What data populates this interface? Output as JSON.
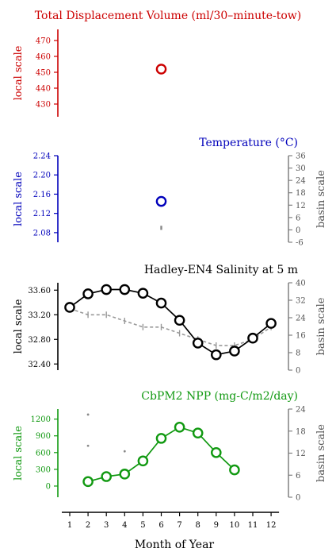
{
  "chart_data": [
    {
      "type": "scatter",
      "title": "Total Displacement Volume (ml/30–minute-tow)",
      "ylabel_left": "local scale",
      "ylim": [
        422,
        477
      ],
      "yticks": [
        430,
        440,
        450,
        460,
        470
      ],
      "color": "#cc0000",
      "series": [
        {
          "x": [
            6
          ],
          "values": [
            452
          ]
        }
      ]
    },
    {
      "type": "scatter",
      "title": "Temperature (°C)",
      "ylabel_left": "local scale",
      "ylabel_right": "basin scale",
      "ylim": [
        2.06,
        2.24
      ],
      "yticks": [
        2.08,
        2.12,
        2.16,
        2.2,
        2.24
      ],
      "right_ylim": [
        -6,
        36
      ],
      "right_yticks": [
        -6,
        0,
        6,
        12,
        18,
        24,
        30,
        36
      ],
      "color": "#0000bb",
      "series": [
        {
          "x": [
            6
          ],
          "values": [
            2.145
          ]
        }
      ],
      "basin_bars": [
        {
          "x": 6,
          "low": 0,
          "high": 2
        }
      ]
    },
    {
      "type": "line",
      "title": "Hadley-EN4 Salinity at 5 m",
      "ylabel_left": "local scale",
      "ylabel_right": "basin scale",
      "ylim": [
        32.3,
        33.72
      ],
      "yticks": [
        32.4,
        32.8,
        33.2,
        33.6
      ],
      "right_ylim": [
        0,
        40
      ],
      "right_yticks": [
        0,
        8,
        16,
        24,
        32,
        40
      ],
      "color": "#000000",
      "series": [
        {
          "x": [
            1,
            2,
            3,
            4,
            5,
            6,
            7,
            8,
            9,
            10,
            11,
            12
          ],
          "values": [
            33.32,
            33.54,
            33.61,
            33.61,
            33.55,
            33.39,
            33.11,
            32.74,
            32.55,
            32.61,
            32.82,
            33.06
          ]
        }
      ],
      "basin_series": [
        {
          "x": [
            1,
            2,
            3,
            4,
            5,
            6,
            7,
            8,
            9,
            10,
            11,
            12
          ],
          "values": [
            33.3,
            33.2,
            33.2,
            33.1,
            33.0,
            33.0,
            32.9,
            32.8,
            32.7,
            32.7,
            32.8,
            33.0
          ]
        }
      ]
    },
    {
      "type": "line",
      "title": "CbPM2 NPP (mg-C/m2/day)",
      "ylabel_left": "local scale",
      "ylabel_right": "basin scale",
      "ylim": [
        -200,
        1380
      ],
      "yticks": [
        0,
        300,
        600,
        900,
        1200
      ],
      "right_ylim": [
        0,
        24
      ],
      "right_yticks": [
        0,
        6,
        12,
        18,
        24
      ],
      "color": "#119911",
      "series": [
        {
          "x": [
            2,
            3,
            4,
            5,
            6,
            7,
            8,
            9,
            10
          ],
          "values": [
            80,
            170,
            215,
            450,
            855,
            1055,
            950,
            600,
            290
          ]
        }
      ],
      "basin_points": [
        {
          "x": 2,
          "value": 22.5
        },
        {
          "x": 2,
          "value": 14
        },
        {
          "x": 4,
          "value": 12.5
        }
      ]
    }
  ],
  "xaxis": {
    "label": "Month of Year",
    "ticks": [
      "1",
      "2",
      "3",
      "4",
      "5",
      "6",
      "7",
      "8",
      "9",
      "10",
      "11",
      "12"
    ]
  }
}
